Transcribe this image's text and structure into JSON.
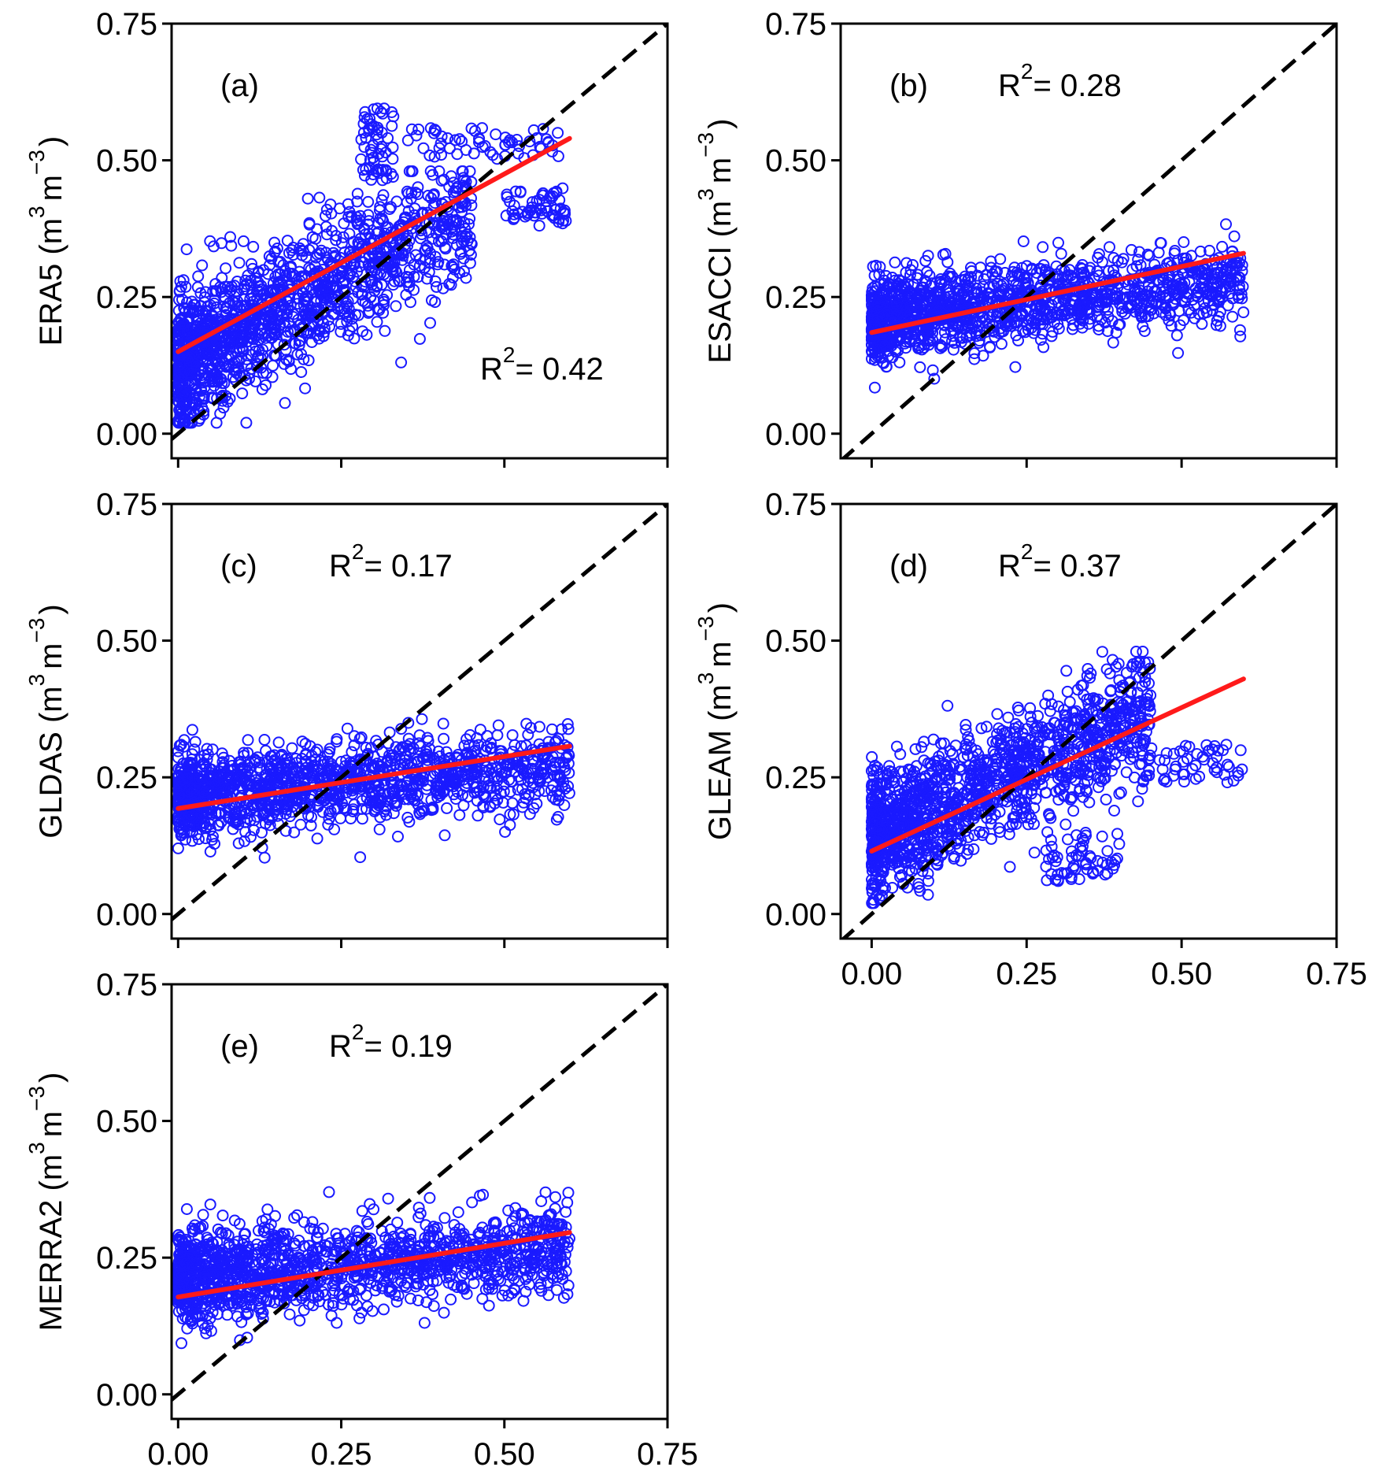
{
  "colors": {
    "points": "#1a1aff",
    "fit": "#ff1a1a",
    "identity": "#000000"
  },
  "chart_data": [
    {
      "id": "a",
      "type": "scatter",
      "tag": "(a)",
      "ylabel": "ERA5",
      "yunit_base": "(m",
      "yunit_exp3": "3",
      "yunit_m": "m",
      "yunit_expm3": "−3",
      "yunit_close": ")",
      "xlabel": "",
      "r2_prefix": "R",
      "r2_exp": "2",
      "r2_value": "= 0.42",
      "xlim": [
        -0.01,
        0.75
      ],
      "ylim": [
        -0.045,
        0.75
      ],
      "xticks": [
        "0.00",
        "0.25",
        "0.50",
        "0.75"
      ],
      "yticks": [
        "0.00",
        "0.25",
        "0.50",
        "0.75"
      ],
      "show_xtick_labels": false,
      "fit_line": {
        "x": [
          0.0,
          0.6
        ],
        "y": [
          0.15,
          0.54
        ]
      },
      "identity_line": true,
      "point_cloud": {
        "x_range": [
          0.0,
          0.45
        ],
        "y_center_intercept": 0.13,
        "y_center_slope": 0.62,
        "spread": 0.11
      },
      "outlier_clusters": [
        {
          "x": [
            0.28,
            0.33
          ],
          "y": [
            0.46,
            0.6
          ]
        },
        {
          "x": [
            0.35,
            0.59
          ],
          "y": [
            0.5,
            0.56
          ]
        },
        {
          "x": [
            0.5,
            0.6
          ],
          "y": [
            0.38,
            0.45
          ]
        }
      ]
    },
    {
      "id": "b",
      "type": "scatter",
      "tag": "(b)",
      "ylabel": "ESACCI",
      "yunit_base": "(m",
      "yunit_exp3": "3",
      "yunit_m": "m",
      "yunit_expm3": "−3",
      "yunit_close": ")",
      "xlabel": "",
      "r2_prefix": "R",
      "r2_exp": "2",
      "r2_value": "= 0.28",
      "xlim": [
        -0.05,
        0.75
      ],
      "ylim": [
        -0.045,
        0.75
      ],
      "xticks": [
        "0.00",
        "0.25",
        "0.50",
        "0.75"
      ],
      "yticks": [
        "0.00",
        "0.25",
        "0.50",
        "0.75"
      ],
      "show_xtick_labels": false,
      "fit_line": {
        "x": [
          0.0,
          0.6
        ],
        "y": [
          0.185,
          0.33
        ]
      },
      "identity_line": true,
      "point_cloud": {
        "x_range": [
          0.0,
          0.6
        ],
        "y_center_intercept": 0.21,
        "y_center_slope": 0.12,
        "spread": 0.07
      },
      "outlier_clusters": []
    },
    {
      "id": "c",
      "type": "scatter",
      "tag": "(c)",
      "ylabel": "GLDAS",
      "yunit_base": "(m",
      "yunit_exp3": "3",
      "yunit_m": "m",
      "yunit_expm3": "−3",
      "yunit_close": ")",
      "xlabel": "",
      "r2_prefix": "R",
      "r2_exp": "2",
      "r2_value": "= 0.17",
      "xlim": [
        -0.01,
        0.75
      ],
      "ylim": [
        -0.045,
        0.75
      ],
      "xticks": [
        "0.00",
        "0.25",
        "0.50",
        "0.75"
      ],
      "yticks": [
        "0.00",
        "0.25",
        "0.50",
        "0.75"
      ],
      "show_xtick_labels": false,
      "fit_line": {
        "x": [
          0.0,
          0.6
        ],
        "y": [
          0.193,
          0.307
        ]
      },
      "identity_line": true,
      "point_cloud": {
        "x_range": [
          0.0,
          0.6
        ],
        "y_center_intercept": 0.22,
        "y_center_slope": 0.08,
        "spread": 0.07
      },
      "outlier_clusters": []
    },
    {
      "id": "d",
      "type": "scatter",
      "tag": "(d)",
      "ylabel": "GLEAM",
      "yunit_base": "(m",
      "yunit_exp3": "3",
      "yunit_m": "m",
      "yunit_expm3": "−3",
      "yunit_close": ")",
      "xlabel": "",
      "r2_prefix": "R",
      "r2_exp": "2",
      "r2_value": "= 0.37",
      "xlim": [
        -0.05,
        0.75
      ],
      "ylim": [
        -0.045,
        0.75
      ],
      "xticks": [
        "0.00",
        "0.25",
        "0.50",
        "0.75"
      ],
      "yticks": [
        "0.00",
        "0.25",
        "0.50",
        "0.75"
      ],
      "show_xtick_labels": true,
      "fit_line": {
        "x": [
          0.0,
          0.6
        ],
        "y": [
          0.115,
          0.43
        ]
      },
      "identity_line": true,
      "point_cloud": {
        "x_range": [
          0.0,
          0.45
        ],
        "y_center_intercept": 0.14,
        "y_center_slope": 0.5,
        "spread": 0.1
      },
      "outlier_clusters": [
        {
          "x": [
            0.42,
            0.6
          ],
          "y": [
            0.24,
            0.31
          ]
        },
        {
          "x": [
            0.28,
            0.4
          ],
          "y": [
            0.06,
            0.15
          ]
        }
      ]
    },
    {
      "id": "e",
      "type": "scatter",
      "tag": "(e)",
      "ylabel": "MERRA2",
      "yunit_base": "(m",
      "yunit_exp3": "3",
      "yunit_m": "m",
      "yunit_expm3": "−3",
      "yunit_close": ")",
      "xlabel": "",
      "r2_prefix": "R",
      "r2_exp": "2",
      "r2_value": "= 0.19",
      "xlim": [
        -0.01,
        0.75
      ],
      "ylim": [
        -0.045,
        0.75
      ],
      "xticks": [
        "0.00",
        "0.25",
        "0.50",
        "0.75"
      ],
      "yticks": [
        "0.00",
        "0.25",
        "0.50",
        "0.75"
      ],
      "show_xtick_labels": true,
      "fit_line": {
        "x": [
          0.0,
          0.6
        ],
        "y": [
          0.178,
          0.296
        ]
      },
      "identity_line": true,
      "point_cloud": {
        "x_range": [
          0.0,
          0.6
        ],
        "y_center_intercept": 0.21,
        "y_center_slope": 0.1,
        "spread": 0.075
      },
      "outlier_clusters": [
        {
          "x": [
            0.45,
            0.6
          ],
          "y": [
            0.18,
            0.34
          ]
        }
      ]
    }
  ]
}
